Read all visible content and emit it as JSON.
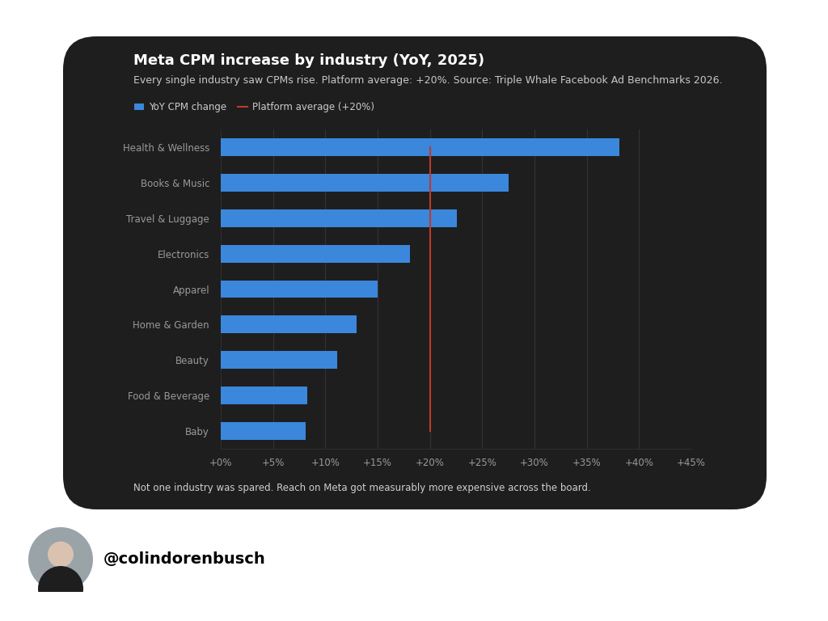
{
  "chart_data": {
    "type": "bar",
    "orientation": "horizontal",
    "title": "Meta CPM increase by industry (YoY, 2025)",
    "subtitle": "Every single industry saw CPMs rise. Platform average: +20%. Source: Triple Whale Facebook Ad Benchmarks 2026.",
    "annotations": [
      "Not one industry was spared. Reach on Meta got measurably more expensive across the board.",
      "@colindorenbusch"
    ],
    "categories": [
      "Health & Wellness",
      "Books & Music",
      "Travel & Luggage",
      "Electronics",
      "Apparel",
      "Home & Garden",
      "Beauty",
      "Food & Beverage",
      "Baby"
    ],
    "series": [
      {
        "name": "YoY CPM change",
        "type": "bar",
        "color": "#3b87dc",
        "values": [
          38.1,
          27.5,
          22.6,
          18.1,
          15.0,
          13.0,
          11.1,
          8.3,
          8.1
        ]
      },
      {
        "name": "Platform average (+20%)",
        "type": "line",
        "color": "#c0392b",
        "values": [
          20,
          20,
          20,
          20,
          20,
          20,
          20,
          20,
          20
        ]
      }
    ],
    "xlim": [
      0,
      45
    ],
    "xticks": [
      {
        "value": 0,
        "label": "+0%"
      },
      {
        "value": 5,
        "label": "+5%"
      },
      {
        "value": 10,
        "label": "+10%"
      },
      {
        "value": 15,
        "label": "+15%"
      },
      {
        "value": 20,
        "label": "+20%"
      },
      {
        "value": 25,
        "label": "+25%"
      },
      {
        "value": 30,
        "label": "+30%"
      },
      {
        "value": 35,
        "label": "+35%"
      },
      {
        "value": 40,
        "label": "+40%"
      },
      {
        "value": 45,
        "label": "+45%"
      }
    ],
    "grid": true,
    "legend": "upper left"
  }
}
